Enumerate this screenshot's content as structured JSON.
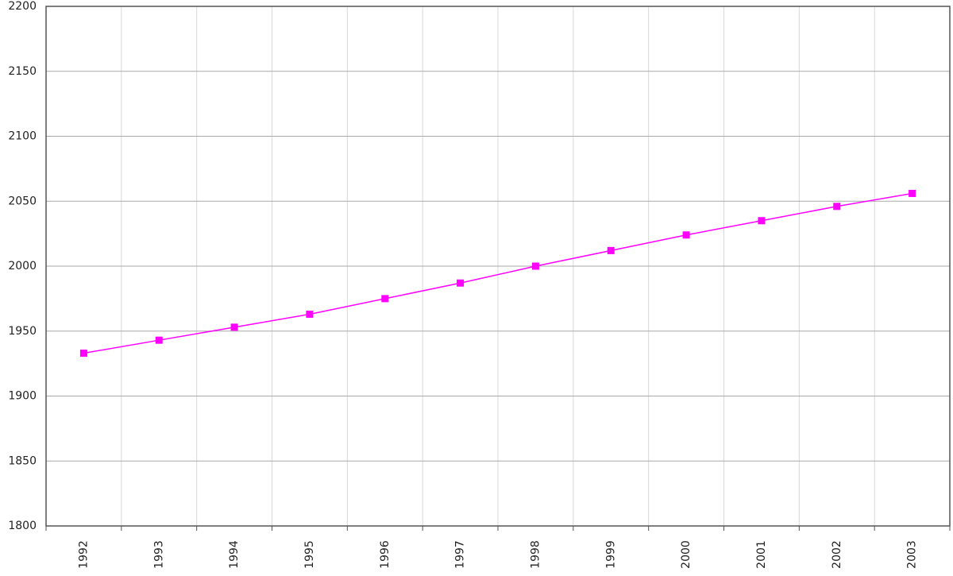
{
  "chart_data": {
    "type": "line",
    "categories": [
      "1992",
      "1993",
      "1994",
      "1995",
      "1996",
      "1997",
      "1998",
      "1999",
      "2000",
      "2001",
      "2002",
      "2003"
    ],
    "series": [
      {
        "color": "#ff00ff",
        "values": [
          1933,
          1943,
          1953,
          1963,
          1975,
          1987,
          2000,
          2012,
          2024,
          2035,
          2046,
          2056
        ]
      }
    ],
    "ylim": [
      1800,
      2200
    ],
    "yticks": [
      1800,
      1850,
      1900,
      1950,
      2000,
      2050,
      2100,
      2150,
      2200
    ],
    "grid": true,
    "markers": "square"
  }
}
